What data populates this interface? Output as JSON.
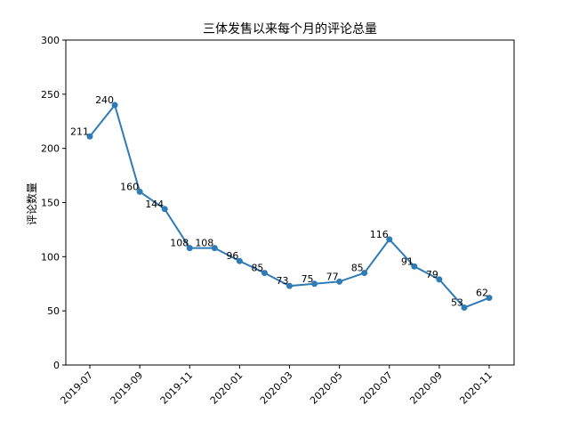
{
  "chart_data": {
    "type": "line",
    "title": "三体发售以来每个月的评论总量",
    "xlabel": "",
    "ylabel": "评论数量",
    "ylim": [
      0,
      300
    ],
    "y_ticks": [
      0,
      50,
      100,
      150,
      200,
      250,
      300
    ],
    "x_tick_labels": [
      "2019-07",
      "2019-09",
      "2019-11",
      "2020-01",
      "2020-03",
      "2020-05",
      "2020-07",
      "2020-09",
      "2020-11"
    ],
    "x": [
      "2019-07",
      "2019-08",
      "2019-09",
      "2019-10",
      "2019-11",
      "2019-12",
      "2020-01",
      "2020-02",
      "2020-03",
      "2020-04",
      "2020-05",
      "2020-06",
      "2020-07",
      "2020-08",
      "2020-09",
      "2020-10",
      "2020-11"
    ],
    "values": [
      211,
      240,
      160,
      144,
      108,
      108,
      96,
      85,
      73,
      75,
      77,
      85,
      116,
      91,
      79,
      53,
      62
    ],
    "data_labels": [
      "211",
      "240",
      "160",
      "144",
      "108",
      "108",
      "96",
      "85",
      "73",
      "75",
      "77",
      "85",
      "116",
      "91",
      "79",
      "53",
      "62"
    ],
    "grid": false,
    "color": "#2f7bb6"
  }
}
